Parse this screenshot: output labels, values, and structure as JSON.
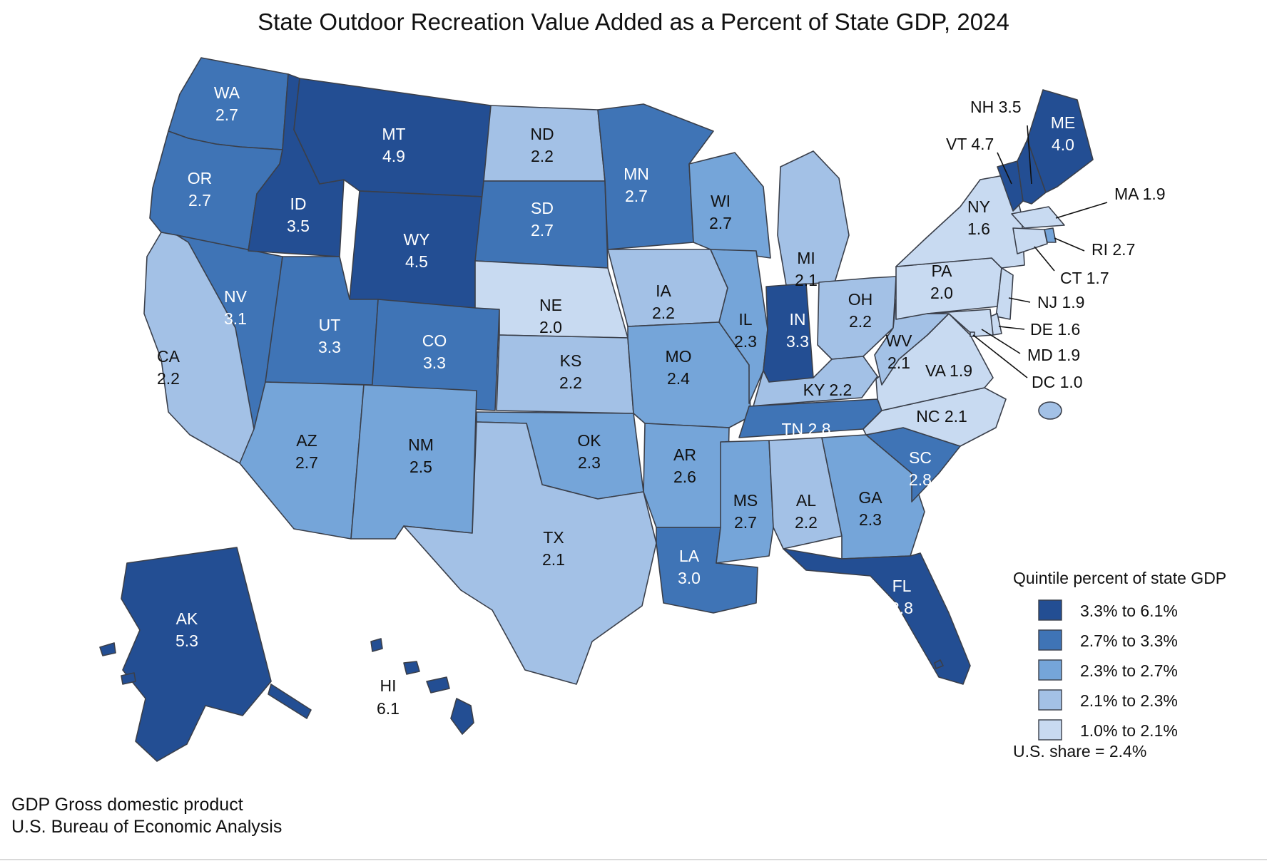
{
  "title": "State Outdoor Recreation Value Added as a Percent of State GDP, 2024",
  "legend": {
    "title": "Quintile percent of state GDP",
    "bins": [
      {
        "label": "3.3% to 6.1%",
        "color": "#234e93"
      },
      {
        "label": "2.7% to 3.3%",
        "color": "#3f74b6"
      },
      {
        "label": "2.3% to 2.7%",
        "color": "#75a5d9"
      },
      {
        "label": "2.1% to 2.3%",
        "color": "#a3c1e6"
      },
      {
        "label": "1.0% to 2.1%",
        "color": "#c8daf1"
      }
    ],
    "us_share": "U.S. share = 2.4%"
  },
  "footnote": {
    "line1": "GDP Gross domestic product",
    "line2": "U.S. Bureau of Economic Analysis"
  },
  "states": [
    {
      "abbr": "WA",
      "value": "2.7",
      "bin": 1
    },
    {
      "abbr": "OR",
      "value": "2.7",
      "bin": 1
    },
    {
      "abbr": "CA",
      "value": "2.2",
      "bin": 3
    },
    {
      "abbr": "NV",
      "value": "3.1",
      "bin": 1
    },
    {
      "abbr": "ID",
      "value": "3.5",
      "bin": 0
    },
    {
      "abbr": "MT",
      "value": "4.9",
      "bin": 0
    },
    {
      "abbr": "WY",
      "value": "4.5",
      "bin": 0
    },
    {
      "abbr": "UT",
      "value": "3.3",
      "bin": 1
    },
    {
      "abbr": "CO",
      "value": "3.3",
      "bin": 1
    },
    {
      "abbr": "AZ",
      "value": "2.7",
      "bin": 2
    },
    {
      "abbr": "NM",
      "value": "2.5",
      "bin": 2
    },
    {
      "abbr": "ND",
      "value": "2.2",
      "bin": 3
    },
    {
      "abbr": "SD",
      "value": "2.7",
      "bin": 1
    },
    {
      "abbr": "NE",
      "value": "2.0",
      "bin": 4
    },
    {
      "abbr": "KS",
      "value": "2.2",
      "bin": 3
    },
    {
      "abbr": "OK",
      "value": "2.3",
      "bin": 2
    },
    {
      "abbr": "TX",
      "value": "2.1",
      "bin": 3
    },
    {
      "abbr": "MN",
      "value": "2.7",
      "bin": 1
    },
    {
      "abbr": "IA",
      "value": "2.2",
      "bin": 3
    },
    {
      "abbr": "MO",
      "value": "2.4",
      "bin": 2
    },
    {
      "abbr": "AR",
      "value": "2.6",
      "bin": 2
    },
    {
      "abbr": "LA",
      "value": "3.0",
      "bin": 1
    },
    {
      "abbr": "WI",
      "value": "2.7",
      "bin": 2
    },
    {
      "abbr": "IL",
      "value": "2.3",
      "bin": 2
    },
    {
      "abbr": "MI",
      "value": "2.1",
      "bin": 3
    },
    {
      "abbr": "IN",
      "value": "3.3",
      "bin": 0
    },
    {
      "abbr": "OH",
      "value": "2.2",
      "bin": 3
    },
    {
      "abbr": "KY",
      "value": "2.2",
      "bin": 3
    },
    {
      "abbr": "TN",
      "value": "2.8",
      "bin": 1
    },
    {
      "abbr": "MS",
      "value": "2.7",
      "bin": 2
    },
    {
      "abbr": "AL",
      "value": "2.2",
      "bin": 3
    },
    {
      "abbr": "GA",
      "value": "2.3",
      "bin": 2
    },
    {
      "abbr": "FL",
      "value": "3.8",
      "bin": 0
    },
    {
      "abbr": "SC",
      "value": "2.8",
      "bin": 1
    },
    {
      "abbr": "NC",
      "value": "2.1",
      "bin": 4
    },
    {
      "abbr": "VA",
      "value": "1.9",
      "bin": 4
    },
    {
      "abbr": "WV",
      "value": "2.1",
      "bin": 3
    },
    {
      "abbr": "PA",
      "value": "2.0",
      "bin": 4
    },
    {
      "abbr": "NY",
      "value": "1.6",
      "bin": 4
    },
    {
      "abbr": "VT",
      "value": "4.7",
      "bin": 0
    },
    {
      "abbr": "NH",
      "value": "3.5",
      "bin": 0
    },
    {
      "abbr": "ME",
      "value": "4.0",
      "bin": 0
    },
    {
      "abbr": "MA",
      "value": "1.9",
      "bin": 4
    },
    {
      "abbr": "RI",
      "value": "2.7",
      "bin": 2
    },
    {
      "abbr": "CT",
      "value": "1.7",
      "bin": 4
    },
    {
      "abbr": "NJ",
      "value": "1.9",
      "bin": 4
    },
    {
      "abbr": "DE",
      "value": "1.6",
      "bin": 4
    },
    {
      "abbr": "MD",
      "value": "1.9",
      "bin": 4
    },
    {
      "abbr": "DC",
      "value": "1.0",
      "bin": 4
    },
    {
      "abbr": "AK",
      "value": "5.3",
      "bin": 0
    },
    {
      "abbr": "HI",
      "value": "6.1",
      "bin": 0
    }
  ]
}
